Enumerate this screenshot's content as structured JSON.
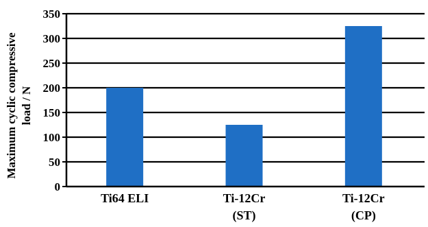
{
  "chart_data": {
    "type": "bar",
    "categories": [
      [
        "Ti64 ELI"
      ],
      [
        "Ti-12Cr",
        "(ST)"
      ],
      [
        "Ti-12Cr",
        "(CP)"
      ]
    ],
    "values": [
      200,
      125,
      325
    ],
    "ylabel_lines": [
      "Maximum cyclic compressive",
      "load / N"
    ],
    "xlabel": "",
    "title": "",
    "ylim": [
      0,
      350
    ],
    "yticks": [
      0,
      50,
      100,
      150,
      200,
      250,
      300,
      350
    ],
    "grid": "horizontal",
    "legend": "none",
    "bar_color": "#1f6fc5",
    "grid_color": "#000000"
  }
}
